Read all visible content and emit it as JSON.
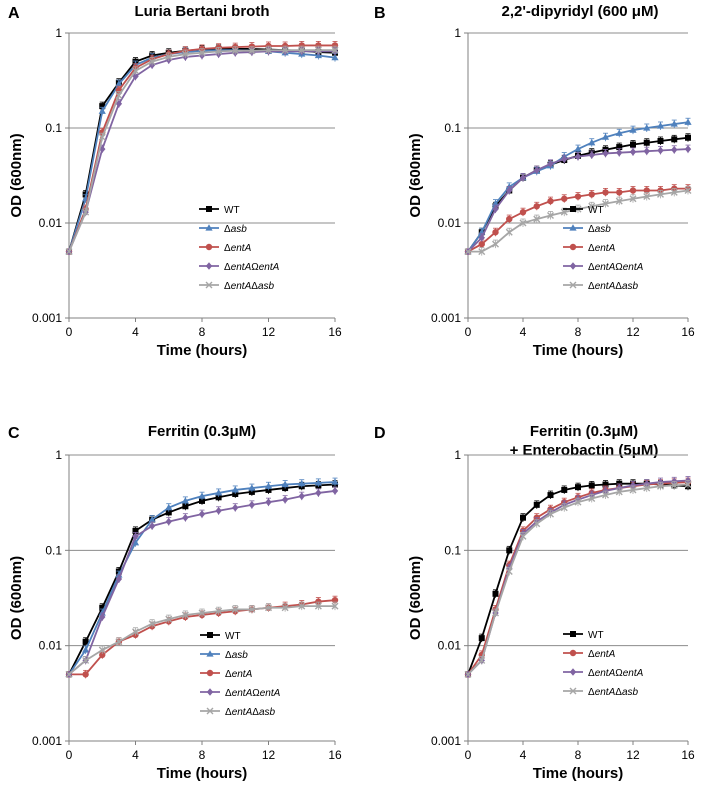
{
  "chart_data": [
    {
      "type": "line",
      "panel": "A",
      "title": "Luria Bertani broth",
      "title2": "",
      "xlabel": "Time (hours)",
      "ylabel": "OD (600nm)",
      "xlim": [
        0,
        16
      ],
      "ylim": [
        0.001,
        1
      ],
      "yscale": "log",
      "xticks": [
        "0",
        "4",
        "8",
        "12",
        "16"
      ],
      "yticks": [
        "0.001",
        "0.01",
        "0.1",
        "1"
      ],
      "grid": "horizontal",
      "legend_position": "bottom-right",
      "x": [
        0,
        1,
        2,
        3,
        4,
        5,
        6,
        7,
        8,
        9,
        10,
        11,
        12,
        13,
        14,
        15,
        16
      ],
      "series": [
        {
          "name": "WT",
          "prefix": "",
          "italic": "",
          "color": "#000000",
          "marker": "square",
          "values": [
            0.005,
            0.02,
            0.17,
            0.3,
            0.5,
            0.58,
            0.62,
            0.65,
            0.67,
            0.68,
            0.68,
            0.68,
            0.67,
            0.66,
            0.65,
            0.63,
            0.62
          ]
        },
        {
          "name": "Δasb",
          "prefix": "Δ",
          "italic": "asb",
          "color": "#4f81bd",
          "marker": "triangle",
          "values": [
            0.005,
            0.018,
            0.15,
            0.29,
            0.46,
            0.55,
            0.6,
            0.63,
            0.65,
            0.66,
            0.66,
            0.65,
            0.64,
            0.62,
            0.6,
            0.58,
            0.55
          ]
        },
        {
          "name": "ΔentA",
          "prefix": "Δ",
          "italic": "entA",
          "color": "#c0504d",
          "marker": "circle",
          "values": [
            0.005,
            0.014,
            0.09,
            0.25,
            0.43,
            0.53,
            0.6,
            0.65,
            0.68,
            0.7,
            0.71,
            0.72,
            0.73,
            0.73,
            0.74,
            0.74,
            0.74
          ]
        },
        {
          "name": "ΔentAΩentA",
          "prefix": "Δ",
          "italic": "entAΩentA",
          "color": "#8064a2",
          "marker": "diamond",
          "values": [
            0.005,
            0.013,
            0.06,
            0.18,
            0.35,
            0.46,
            0.52,
            0.56,
            0.58,
            0.6,
            0.62,
            0.63,
            0.64,
            0.64,
            0.64,
            0.64,
            0.64
          ]
        },
        {
          "name": "ΔentAΔasb",
          "prefix": "Δ",
          "italic": "entAΔasb",
          "color": "#a6a6a6",
          "marker": "x",
          "values": [
            0.005,
            0.013,
            0.08,
            0.22,
            0.4,
            0.5,
            0.56,
            0.6,
            0.62,
            0.64,
            0.65,
            0.65,
            0.66,
            0.66,
            0.66,
            0.66,
            0.66
          ]
        }
      ]
    },
    {
      "type": "line",
      "panel": "B",
      "title": "2,2'-dipyridyl (600 μM)",
      "title2": "",
      "xlabel": "Time (hours)",
      "ylabel": "OD (600nm)",
      "xlim": [
        0,
        16
      ],
      "ylim": [
        0.001,
        1
      ],
      "yscale": "log",
      "xticks": [
        "0",
        "4",
        "8",
        "12",
        "16"
      ],
      "yticks": [
        "0.001",
        "0.01",
        "0.1",
        "1"
      ],
      "grid": "horizontal",
      "legend_position": "bottom-right",
      "x": [
        0,
        1,
        2,
        3,
        4,
        5,
        6,
        7,
        8,
        9,
        10,
        11,
        12,
        13,
        14,
        15,
        16
      ],
      "series": [
        {
          "name": "WT",
          "prefix": "",
          "italic": "",
          "color": "#000000",
          "marker": "square",
          "values": [
            0.005,
            0.008,
            0.015,
            0.022,
            0.03,
            0.036,
            0.041,
            0.046,
            0.051,
            0.055,
            0.059,
            0.063,
            0.067,
            0.07,
            0.073,
            0.076,
            0.079
          ]
        },
        {
          "name": "Δasb",
          "prefix": "Δ",
          "italic": "asb",
          "color": "#4f81bd",
          "marker": "triangle",
          "values": [
            0.005,
            0.008,
            0.016,
            0.024,
            0.03,
            0.035,
            0.04,
            0.05,
            0.06,
            0.07,
            0.08,
            0.088,
            0.095,
            0.1,
            0.105,
            0.11,
            0.115
          ]
        },
        {
          "name": "ΔentA",
          "prefix": "Δ",
          "italic": "entA",
          "color": "#c0504d",
          "marker": "circle",
          "values": [
            0.005,
            0.006,
            0.008,
            0.011,
            0.013,
            0.015,
            0.017,
            0.018,
            0.019,
            0.02,
            0.021,
            0.021,
            0.022,
            0.022,
            0.022,
            0.023,
            0.023
          ]
        },
        {
          "name": "ΔentAΩentA",
          "prefix": "Δ",
          "italic": "entAΩentA",
          "color": "#8064a2",
          "marker": "diamond",
          "values": [
            0.005,
            0.007,
            0.014,
            0.022,
            0.03,
            0.036,
            0.042,
            0.047,
            0.05,
            0.052,
            0.054,
            0.055,
            0.056,
            0.057,
            0.058,
            0.059,
            0.06
          ]
        },
        {
          "name": "ΔentAΔasb",
          "prefix": "Δ",
          "italic": "entAΔasb",
          "color": "#a6a6a6",
          "marker": "x",
          "values": [
            0.005,
            0.005,
            0.006,
            0.008,
            0.01,
            0.011,
            0.012,
            0.013,
            0.014,
            0.015,
            0.016,
            0.017,
            0.018,
            0.019,
            0.02,
            0.021,
            0.022
          ]
        }
      ]
    },
    {
      "type": "line",
      "panel": "C",
      "title": "Ferritin (0.3μM)",
      "title2": "",
      "xlabel": "Time (hours)",
      "ylabel": "OD (600nm)",
      "xlim": [
        0,
        16
      ],
      "ylim": [
        0.001,
        1
      ],
      "yscale": "log",
      "xticks": [
        "0",
        "4",
        "8",
        "12",
        "16"
      ],
      "yticks": [
        "0.001",
        "0.01",
        "0.1",
        "1"
      ],
      "grid": "horizontal",
      "legend_position": "bottom-right",
      "x": [
        0,
        1,
        2,
        3,
        4,
        5,
        6,
        7,
        8,
        9,
        10,
        11,
        12,
        13,
        14,
        15,
        16
      ],
      "series": [
        {
          "name": "WT",
          "prefix": "",
          "italic": "",
          "color": "#000000",
          "marker": "square",
          "values": [
            0.005,
            0.011,
            0.025,
            0.06,
            0.16,
            0.21,
            0.25,
            0.29,
            0.33,
            0.36,
            0.39,
            0.41,
            0.43,
            0.45,
            0.47,
            0.48,
            0.49
          ]
        },
        {
          "name": "Δasb",
          "prefix": "Δ",
          "italic": "asb",
          "color": "#4f81bd",
          "marker": "triangle",
          "values": [
            0.005,
            0.009,
            0.022,
            0.055,
            0.12,
            0.21,
            0.28,
            0.33,
            0.37,
            0.4,
            0.43,
            0.45,
            0.47,
            0.49,
            0.5,
            0.51,
            0.52
          ]
        },
        {
          "name": "ΔentA",
          "prefix": "Δ",
          "italic": "entA",
          "color": "#c0504d",
          "marker": "circle",
          "values": [
            0.005,
            0.005,
            0.008,
            0.011,
            0.013,
            0.016,
            0.018,
            0.02,
            0.021,
            0.022,
            0.023,
            0.024,
            0.025,
            0.026,
            0.027,
            0.029,
            0.03
          ]
        },
        {
          "name": "ΔentAΩentA",
          "prefix": "Δ",
          "italic": "entAΩentA",
          "color": "#8064a2",
          "marker": "diamond",
          "values": [
            0.005,
            0.007,
            0.02,
            0.05,
            0.14,
            0.18,
            0.2,
            0.22,
            0.24,
            0.26,
            0.28,
            0.3,
            0.32,
            0.34,
            0.37,
            0.4,
            0.42
          ]
        },
        {
          "name": "ΔentAΔasb",
          "prefix": "Δ",
          "italic": "entAΔasb",
          "color": "#a6a6a6",
          "marker": "x",
          "values": [
            0.005,
            0.007,
            0.009,
            0.011,
            0.014,
            0.017,
            0.019,
            0.021,
            0.022,
            0.023,
            0.024,
            0.024,
            0.025,
            0.025,
            0.026,
            0.026,
            0.026
          ]
        }
      ]
    },
    {
      "type": "line",
      "panel": "D",
      "title": "Ferritin (0.3μM)",
      "title2": "+ Enterobactin (5μM)",
      "xlabel": "Time (hours)",
      "ylabel": "OD (600nm)",
      "xlim": [
        0,
        16
      ],
      "ylim": [
        0.001,
        1
      ],
      "yscale": "log",
      "xticks": [
        "0",
        "4",
        "8",
        "12",
        "16"
      ],
      "yticks": [
        "0.001",
        "0.01",
        "0.1",
        "1"
      ],
      "grid": "horizontal",
      "legend_position": "bottom-right",
      "x": [
        0,
        1,
        2,
        3,
        4,
        5,
        6,
        7,
        8,
        9,
        10,
        11,
        12,
        13,
        14,
        15,
        16
      ],
      "series": [
        {
          "name": "WT",
          "prefix": "",
          "italic": "",
          "color": "#000000",
          "marker": "square",
          "values": [
            0.005,
            0.012,
            0.035,
            0.1,
            0.22,
            0.3,
            0.38,
            0.43,
            0.46,
            0.48,
            0.49,
            0.5,
            0.5,
            0.5,
            0.49,
            0.48,
            0.47
          ]
        },
        {
          "name": "ΔentA",
          "prefix": "Δ",
          "italic": "entA",
          "color": "#c0504d",
          "marker": "circle",
          "values": [
            0.005,
            0.008,
            0.024,
            0.07,
            0.16,
            0.22,
            0.27,
            0.32,
            0.36,
            0.4,
            0.43,
            0.45,
            0.47,
            0.49,
            0.5,
            0.51,
            0.52
          ]
        },
        {
          "name": "ΔentAΩentA",
          "prefix": "Δ",
          "italic": "entAΩentA",
          "color": "#8064a2",
          "marker": "diamond",
          "values": [
            0.005,
            0.007,
            0.022,
            0.065,
            0.15,
            0.2,
            0.25,
            0.3,
            0.34,
            0.38,
            0.42,
            0.45,
            0.48,
            0.5,
            0.52,
            0.53,
            0.54
          ]
        },
        {
          "name": "ΔentAΔasb",
          "prefix": "Δ",
          "italic": "entAΔasb",
          "color": "#a6a6a6",
          "marker": "x",
          "values": [
            0.005,
            0.007,
            0.022,
            0.06,
            0.14,
            0.19,
            0.24,
            0.28,
            0.32,
            0.35,
            0.38,
            0.41,
            0.43,
            0.45,
            0.47,
            0.48,
            0.49
          ]
        }
      ]
    }
  ]
}
